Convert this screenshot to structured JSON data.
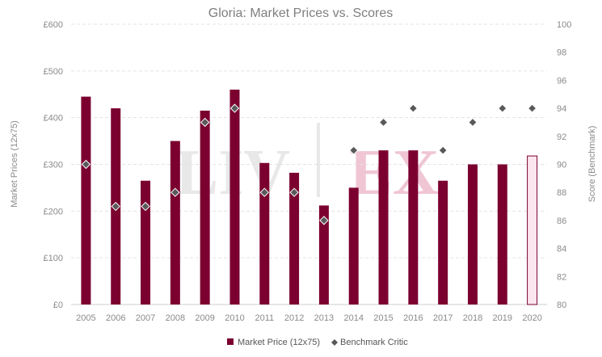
{
  "chart_data": {
    "type": "bar",
    "title": "Gloria: Market Prices vs. Scores",
    "categories": [
      "2005",
      "2006",
      "2007",
      "2008",
      "2009",
      "2010",
      "2011",
      "2012",
      "2013",
      "2014",
      "2015",
      "2016",
      "2017",
      "2018",
      "2019",
      "2020"
    ],
    "series": [
      {
        "name": "Market Price (12x75)",
        "type": "bar",
        "axis": "left",
        "values": [
          445,
          420,
          265,
          350,
          415,
          460,
          303,
          282,
          212,
          250,
          330,
          330,
          265,
          300,
          300,
          318
        ],
        "highlight_last": true
      },
      {
        "name": "Benchmark Critic",
        "type": "scatter",
        "marker": "diamond",
        "axis": "right",
        "values": [
          90,
          87,
          87,
          88,
          93,
          94,
          88,
          88,
          86,
          91,
          93,
          94,
          91,
          93,
          94,
          94
        ]
      }
    ],
    "y_left": {
      "label": "Market Prices (12x75)",
      "min": 0,
      "max": 600,
      "ticks": [
        "£0",
        "£100",
        "£200",
        "£300",
        "£400",
        "£500",
        "£600"
      ]
    },
    "y_right": {
      "label": "Score (Benchmark)",
      "min": 80,
      "max": 100,
      "ticks": [
        "80",
        "82",
        "84",
        "86",
        "88",
        "90",
        "92",
        "94",
        "96",
        "98",
        "100"
      ]
    },
    "grid": true,
    "legend": "bottom-center",
    "watermark": {
      "left": "LIV",
      "right": "EX"
    },
    "colors": {
      "bar": "#7b0030",
      "bar_last_fill": "#fbe5ee",
      "bar_last_stroke": "#7b0030",
      "marker": "#595959",
      "grid": "#e3e3e3"
    }
  }
}
